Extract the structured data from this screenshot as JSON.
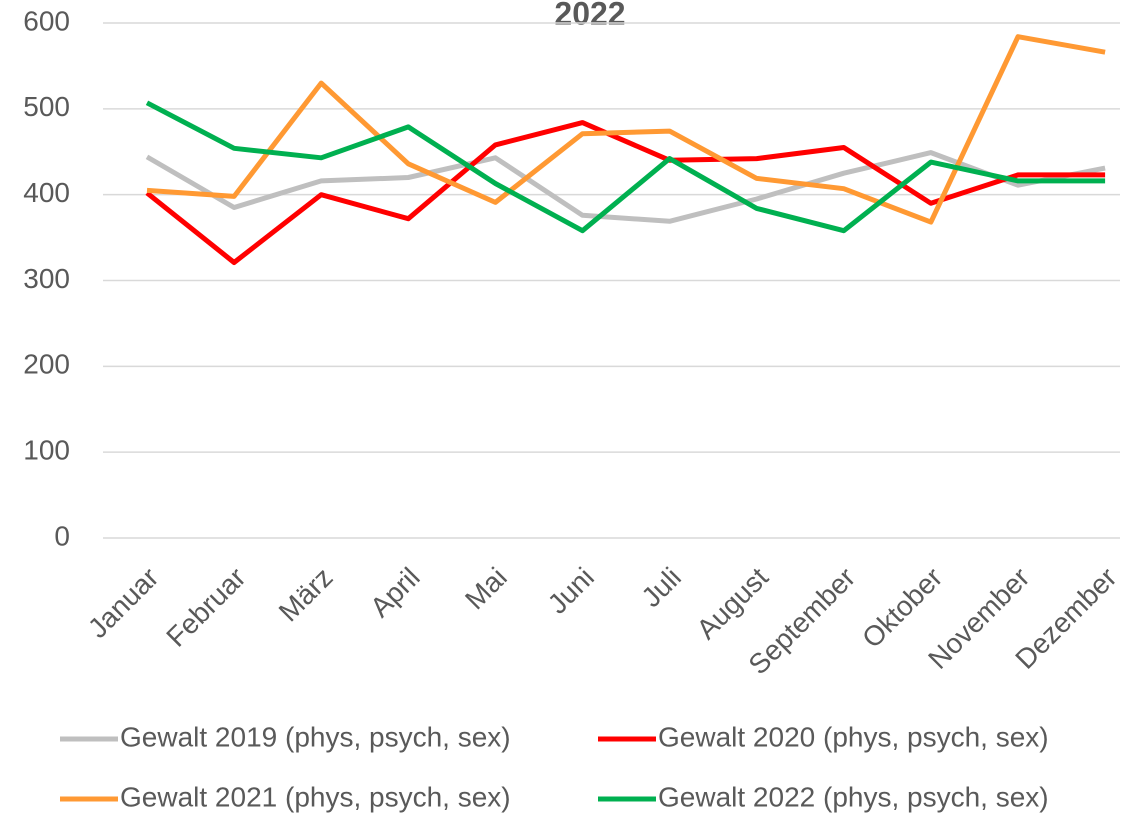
{
  "chart_data": {
    "type": "line",
    "title": "2022",
    "categories": [
      "Januar",
      "Februar",
      "März",
      "April",
      "Mai",
      "Juni",
      "Juli",
      "August",
      "September",
      "Oktober",
      "November",
      "Dezember"
    ],
    "series": [
      {
        "name": "Gewalt 2019 (phys, psych, sex)",
        "color": "#bfbfbf",
        "values": [
          444,
          385,
          416,
          420,
          443,
          376,
          369,
          395,
          425,
          449,
          411,
          431
        ]
      },
      {
        "name": "Gewalt 2020 (phys, psych, sex)",
        "color": "#ff0000",
        "values": [
          402,
          321,
          400,
          372,
          458,
          484,
          440,
          442,
          455,
          390,
          423,
          423
        ]
      },
      {
        "name": "Gewalt 2021 (phys, psych, sex)",
        "color": "#ff9933",
        "values": [
          405,
          398,
          530,
          436,
          391,
          471,
          474,
          419,
          407,
          368,
          584,
          566
        ]
      },
      {
        "name": "Gewalt 2022 (phys, psych, sex)",
        "color": "#00b050",
        "values": [
          507,
          454,
          443,
          479,
          413,
          358,
          442,
          384,
          358,
          438,
          416,
          416
        ]
      }
    ],
    "ylim": [
      0,
      600
    ],
    "yticks": [
      0,
      100,
      200,
      300,
      400,
      500,
      600
    ],
    "grid": true,
    "legend": "bottom"
  }
}
